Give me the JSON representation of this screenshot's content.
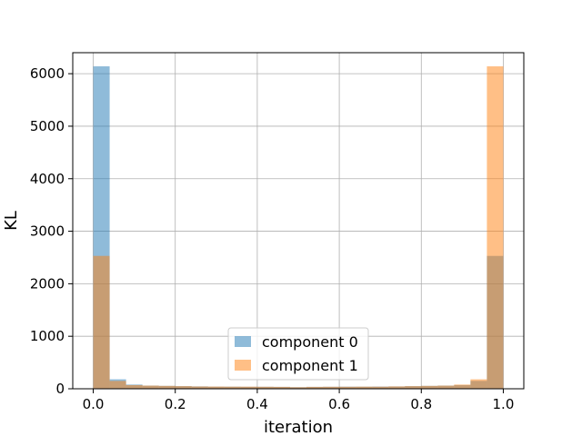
{
  "chart_data": {
    "type": "bar",
    "title": "",
    "xlabel": "iteration",
    "ylabel": "KL",
    "xlim": [
      -0.05,
      1.05
    ],
    "ylim": [
      0,
      6400
    ],
    "xticks": [
      0.0,
      0.2,
      0.4,
      0.6,
      0.8,
      1.0
    ],
    "xtick_labels": [
      "0.0",
      "0.2",
      "0.4",
      "0.6",
      "0.8",
      "1.0"
    ],
    "yticks": [
      0,
      1000,
      2000,
      3000,
      4000,
      5000,
      6000
    ],
    "ytick_labels": [
      "0",
      "1000",
      "2000",
      "3000",
      "4000",
      "5000",
      "6000"
    ],
    "grid": true,
    "legend_position": "lower-center",
    "bin_edges": [
      0.0,
      0.04,
      0.08,
      0.12,
      0.16,
      0.2,
      0.24,
      0.28,
      0.32,
      0.36,
      0.4,
      0.44,
      0.48,
      0.52,
      0.56,
      0.6,
      0.64,
      0.68,
      0.72,
      0.76,
      0.8,
      0.84,
      0.88,
      0.92,
      0.96,
      1.0
    ],
    "series": [
      {
        "name": "component 0",
        "color": "#1f77b4",
        "values": [
          6140,
          180,
          80,
          60,
          55,
          50,
          45,
          40,
          40,
          38,
          38,
          36,
          30,
          36,
          38,
          40,
          40,
          42,
          44,
          50,
          55,
          60,
          70,
          150,
          2530
        ]
      },
      {
        "name": "component 1",
        "color": "#ff7f0e",
        "values": [
          2530,
          150,
          70,
          60,
          55,
          50,
          44,
          42,
          40,
          40,
          38,
          36,
          30,
          36,
          38,
          38,
          40,
          40,
          45,
          50,
          55,
          60,
          80,
          180,
          6140
        ]
      }
    ]
  }
}
